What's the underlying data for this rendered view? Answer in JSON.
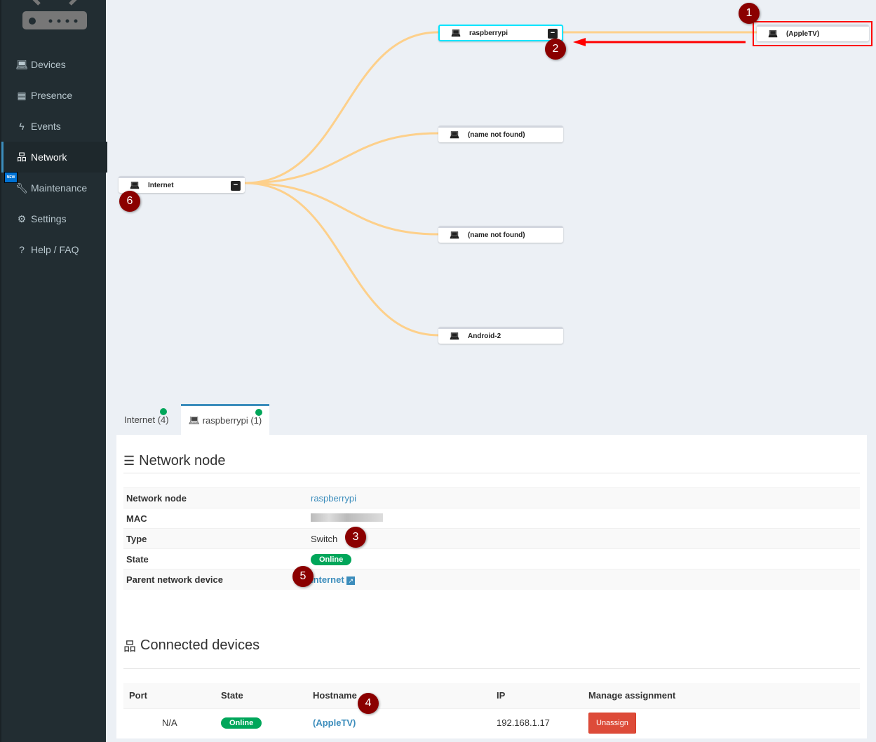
{
  "sidebar": {
    "items": [
      {
        "label": "Devices",
        "icon": "laptop-icon"
      },
      {
        "label": "Presence",
        "icon": "calendar-icon"
      },
      {
        "label": "Events",
        "icon": "bolt-icon"
      },
      {
        "label": "Network",
        "icon": "sitemap-icon",
        "active": true
      },
      {
        "label": "Maintenance",
        "icon": "wrench-icon",
        "badge": "NEW"
      },
      {
        "label": "Settings",
        "icon": "gear-icon"
      },
      {
        "label": "Help / FAQ",
        "icon": "question-icon"
      }
    ]
  },
  "tree": {
    "nodes": {
      "internet": "Internet",
      "raspberrypi": "raspberrypi",
      "n1": "(name not found)",
      "n2": "(name not found)",
      "android": "Android-2",
      "appletv": "(AppleTV)"
    },
    "collapse": "−",
    "link_color": "#fdd08b",
    "highlight_color": "#00e5ff"
  },
  "annotations": [
    "1",
    "2",
    "3",
    "4",
    "5",
    "6"
  ],
  "tabs": [
    {
      "label": "Internet (4)"
    },
    {
      "label": "raspberrypi (1)",
      "active": true
    }
  ],
  "node_section": {
    "title": "Network node",
    "rows": [
      {
        "label": "Network node",
        "value": "raspberrypi"
      },
      {
        "label": "MAC",
        "value": ""
      },
      {
        "label": "Type",
        "value": "Switch"
      },
      {
        "label": "State",
        "value": "Online"
      },
      {
        "label": "Parent network device",
        "value": "Internet"
      }
    ]
  },
  "connected": {
    "title": "Connected devices",
    "headers": [
      "Port",
      "State",
      "Hostname",
      "IP",
      "Manage assignment"
    ],
    "rows": [
      {
        "port": "N/A",
        "state": "Online",
        "hostname": "(AppleTV)",
        "ip": "192.168.1.17",
        "action": "Unassign"
      }
    ]
  }
}
